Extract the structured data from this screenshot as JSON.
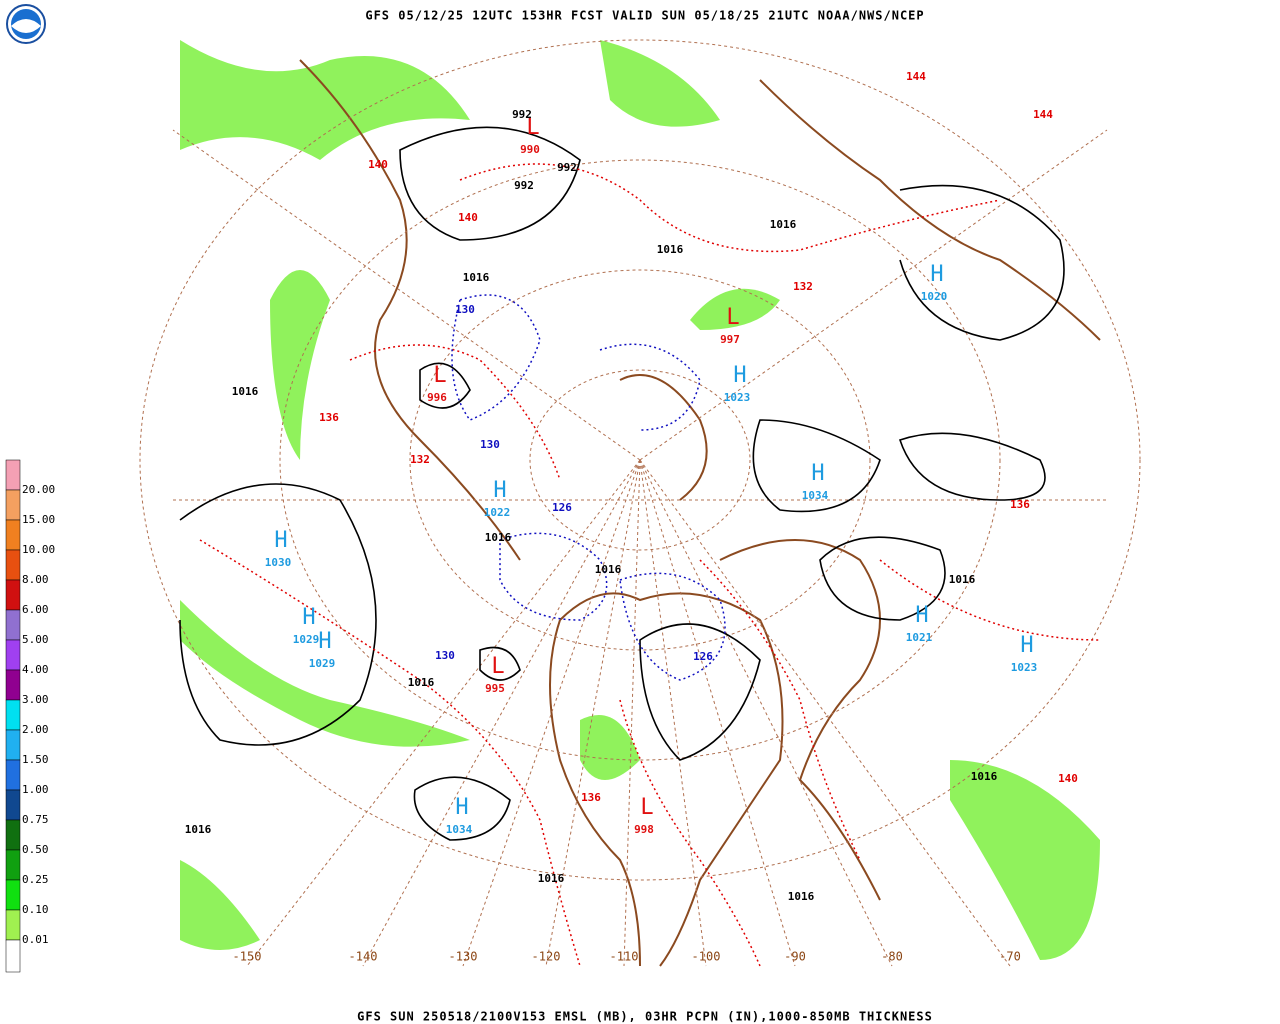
{
  "header": {
    "title": "GFS 05/12/25 12UTC 153HR FCST VALID SUN 05/18/25 21UTC NOAA/NWS/NCEP"
  },
  "footer": {
    "text": "GFS SUN 250518/2100V153 EMSL (MB), 03HR PCPN (IN),1000-850MB THICKNESS"
  },
  "colorbar": {
    "labels": [
      "20.00",
      "15.00",
      "10.00",
      "8.00",
      "6.00",
      "5.00",
      "4.00",
      "3.00",
      "2.00",
      "1.50",
      "1.00",
      "0.75",
      "0.50",
      "0.25",
      "0.10",
      "0.01"
    ],
    "colors": [
      "#f4a0b4",
      "#f4a060",
      "#f08020",
      "#e85010",
      "#d01010",
      "#9070d0",
      "#a040f0",
      "#900090",
      "#00e0f0",
      "#20b0f0",
      "#2070e0",
      "#104890",
      "#107010",
      "#10a010",
      "#10e010",
      "#a0f050"
    ]
  },
  "longitudes": [
    -150,
    -140,
    -130,
    -120,
    -110,
    -100,
    -90,
    -80,
    -70
  ],
  "centers": [
    {
      "letter": "H",
      "value": 1030
    },
    {
      "letter": "H",
      "value": 1029
    },
    {
      "letter": "H",
      "value": 1029
    },
    {
      "letter": "H",
      "value": 1022
    },
    {
      "letter": "H",
      "value": 1034
    },
    {
      "letter": "H",
      "value": 1034
    },
    {
      "letter": "H",
      "value": 1021
    },
    {
      "letter": "H",
      "value": 1023
    },
    {
      "letter": "H",
      "value": 1020
    },
    {
      "letter": "H",
      "value": 1023
    },
    {
      "letter": "L",
      "value": 995
    },
    {
      "letter": "L",
      "value": 996
    },
    {
      "letter": "L",
      "value": 997
    },
    {
      "letter": "L",
      "value": 990
    },
    {
      "letter": "L",
      "value": 998
    }
  ],
  "isobar_labels": [
    1016,
    1016,
    1016,
    1016,
    1016,
    1016,
    1016,
    1016,
    1016,
    1016,
    1016,
    1016,
    992,
    992,
    992
  ],
  "thickness_labels": [
    {
      "text": "136",
      "kind": "red"
    },
    {
      "text": "140",
      "kind": "red"
    },
    {
      "text": "140",
      "kind": "red"
    },
    {
      "text": "144",
      "kind": "red"
    },
    {
      "text": "144",
      "kind": "red"
    },
    {
      "text": "132",
      "kind": "red"
    },
    {
      "text": "136",
      "kind": "red"
    },
    {
      "text": "136",
      "kind": "red"
    },
    {
      "text": "132",
      "kind": "red"
    },
    {
      "text": "140",
      "kind": "red"
    },
    {
      "text": "130",
      "kind": "blue"
    },
    {
      "text": "130",
      "kind": "blue"
    },
    {
      "text": "126",
      "kind": "blue"
    },
    {
      "text": "130",
      "kind": "blue"
    },
    {
      "text": "126",
      "kind": "blue"
    }
  ]
}
